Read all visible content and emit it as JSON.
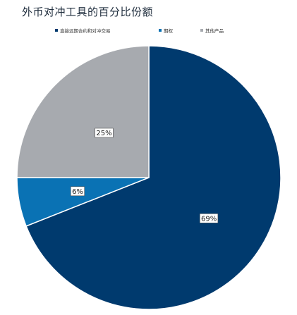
{
  "chart_data": {
    "type": "pie",
    "title": "外币对冲工具的百分比份额",
    "categories": [
      "直接远期合约和对冲交易",
      "期权",
      "其他产品"
    ],
    "values": [
      69,
      6,
      25
    ],
    "labels": [
      "69%",
      "6%",
      "25%"
    ],
    "colors": [
      "#003a6e",
      "#0a72b4",
      "#a7aaaf"
    ],
    "start_angle_deg": 0,
    "direction": "clockwise",
    "legend_position": "top"
  }
}
